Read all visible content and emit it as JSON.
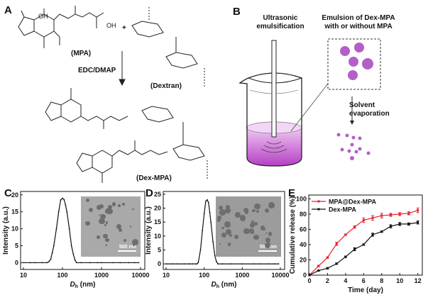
{
  "panels": {
    "A": {
      "label": "A",
      "mpa": "(MPA)",
      "plus": "+",
      "dextran": "(Dextran)",
      "reagent": "EDC/DMAP",
      "product": "(Dex-MPA)",
      "atoms": {
        "oh": "OH",
        "ho": "HO",
        "o": "O"
      }
    },
    "B": {
      "label": "B",
      "step1": [
        "Ultrasonic",
        "emulsification"
      ],
      "emulsion": [
        "Emulsion of Dex-MPA",
        "with or without MPA"
      ],
      "step2": [
        "Solvent",
        "evaporation"
      ],
      "particle_color": "#b35fc9"
    },
    "C": {
      "label": "C",
      "scale_bar": "500 nm"
    },
    "D": {
      "label": "D",
      "scale_bar": "500 nm"
    },
    "E": {
      "label": "E"
    }
  },
  "chart_data": [
    {
      "panel": "C",
      "type": "line",
      "xlabel": "D_h (nm)",
      "xlabel_main": "D",
      "xlabel_sub": "h",
      "xlabel_unit": " (nm)",
      "ylabel": "Intensity (a.u.)",
      "xscale": "log",
      "xlim": [
        10,
        10000
      ],
      "ylim": [
        -2,
        21
      ],
      "xticks": [
        "10",
        "100",
        "1000",
        "10000"
      ],
      "yticks": [
        "0",
        "5",
        "10",
        "15",
        "20"
      ],
      "points": [
        [
          10,
          0
        ],
        [
          15,
          0
        ],
        [
          20,
          0
        ],
        [
          30,
          0
        ],
        [
          40,
          0
        ],
        [
          45,
          0.3
        ],
        [
          50,
          1
        ],
        [
          55,
          3
        ],
        [
          60,
          5
        ],
        [
          70,
          10
        ],
        [
          80,
          15
        ],
        [
          90,
          18.5
        ],
        [
          100,
          19
        ],
        [
          110,
          18.6
        ],
        [
          120,
          17
        ],
        [
          130,
          15
        ],
        [
          150,
          10
        ],
        [
          170,
          5
        ],
        [
          190,
          2.5
        ],
        [
          210,
          0.7
        ],
        [
          230,
          0
        ],
        [
          300,
          0
        ],
        [
          500,
          0
        ],
        [
          800,
          0
        ],
        [
          1000,
          0
        ],
        [
          2000,
          0
        ],
        [
          3000,
          0
        ],
        [
          5000,
          0
        ],
        [
          7000,
          0
        ],
        [
          9000,
          0
        ]
      ],
      "color": "#111111"
    },
    {
      "panel": "D",
      "type": "line",
      "xlabel": "D_h (nm)",
      "xlabel_main": "D",
      "xlabel_sub": "h",
      "xlabel_unit": " (nm)",
      "ylabel": "Intensity (a.u.)",
      "xscale": "log",
      "xlim": [
        10,
        10000
      ],
      "ylim": [
        -2,
        26
      ],
      "xticks": [
        "10",
        "100",
        "1000",
        "10000"
      ],
      "yticks": [
        "0",
        "5",
        "10",
        "15",
        "20",
        "25"
      ],
      "points": [
        [
          10,
          0
        ],
        [
          15,
          0
        ],
        [
          20,
          0
        ],
        [
          30,
          0
        ],
        [
          40,
          0
        ],
        [
          50,
          0
        ],
        [
          60,
          0
        ],
        [
          65,
          0
        ],
        [
          70,
          0.5
        ],
        [
          80,
          5
        ],
        [
          90,
          12
        ],
        [
          100,
          18
        ],
        [
          110,
          22.5
        ],
        [
          120,
          23
        ],
        [
          130,
          22
        ],
        [
          140,
          18.5
        ],
        [
          150,
          15
        ],
        [
          170,
          8
        ],
        [
          190,
          3
        ],
        [
          210,
          0.8
        ],
        [
          230,
          0
        ],
        [
          300,
          0
        ],
        [
          500,
          0
        ],
        [
          1000,
          0
        ],
        [
          2000,
          0
        ],
        [
          3000,
          0
        ],
        [
          5000,
          0
        ],
        [
          7000,
          0
        ],
        [
          9000,
          0
        ]
      ],
      "color": "#111111"
    },
    {
      "panel": "E",
      "type": "line",
      "xlabel": "Time (day)",
      "ylabel": "Cumulative release (%)",
      "xlim": [
        0,
        12.5
      ],
      "ylim": [
        0,
        105
      ],
      "xticks": [
        "0",
        "2",
        "4",
        "6",
        "8",
        "10",
        "12"
      ],
      "yticks": [
        "0",
        "20",
        "40",
        "60",
        "80",
        "100"
      ],
      "legend": "top-left",
      "x": [
        0,
        1,
        2,
        3,
        4,
        5,
        6,
        7,
        8,
        9,
        10,
        11,
        12
      ],
      "series": [
        {
          "name": "MPA@Dex-MPA",
          "color": "#e8202a",
          "values": [
            0,
            12,
            23,
            41,
            53,
            63,
            72,
            75,
            78,
            79,
            80,
            81,
            85
          ],
          "errors": [
            0,
            1,
            1,
            2,
            1,
            1.5,
            3,
            3,
            3,
            2,
            2,
            2,
            3
          ]
        },
        {
          "name": "Dex-MPA",
          "color": "#111111",
          "values": [
            0,
            6,
            9,
            15,
            24,
            34,
            40,
            53,
            57,
            64,
            67,
            67,
            69
          ],
          "errors": [
            0,
            0.5,
            1,
            1,
            1,
            2,
            1,
            2,
            1,
            2,
            2,
            1.5,
            2
          ]
        }
      ]
    }
  ]
}
